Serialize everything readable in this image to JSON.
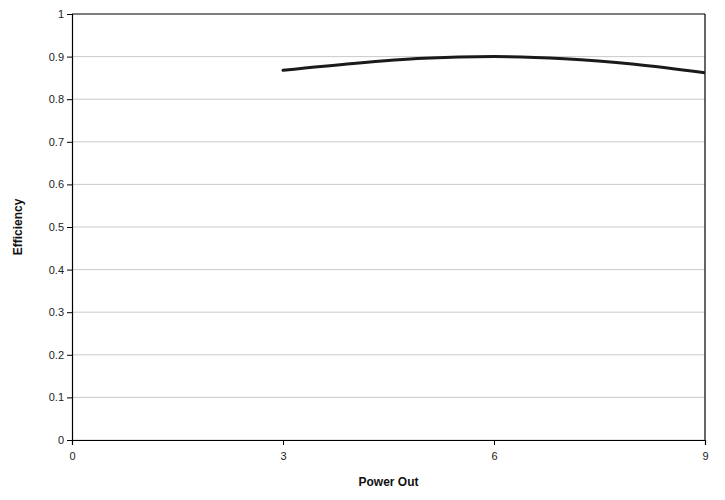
{
  "chart_data": {
    "type": "line",
    "x_label": "Power Out",
    "y_label": "Efficiency",
    "x": [
      3,
      4,
      5,
      6,
      7,
      8,
      9
    ],
    "values": [
      0.868,
      0.884,
      0.896,
      0.9,
      0.895,
      0.882,
      0.862
    ],
    "color": "#1a1a1a",
    "xlim": [
      0,
      9
    ],
    "xticks": [
      0,
      3,
      6,
      9
    ],
    "ylim": [
      0,
      1
    ],
    "yticks": [
      0,
      0.1,
      0.2,
      0.3,
      0.4,
      0.5,
      0.6,
      0.7,
      0.8,
      0.9,
      1
    ],
    "grid": true
  }
}
